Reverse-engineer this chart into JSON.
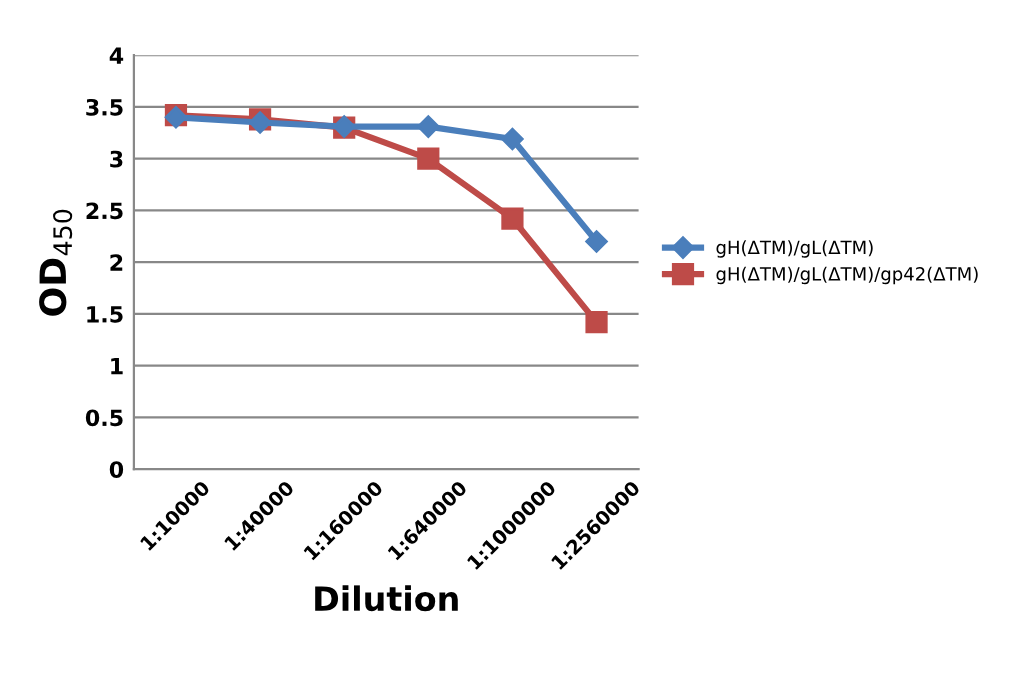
{
  "chart_data": {
    "type": "line",
    "xlabel": "Dilution",
    "ylabel": "OD$_{450}$",
    "categories": [
      "1:10000",
      "1:40000",
      "1:160000",
      "1:640000",
      "1:1000000",
      "1:2560000"
    ],
    "series": [
      {
        "name": "gH(ΔTM)/gL(ΔTM)",
        "color": "#4a7ebb",
        "marker": "diamond",
        "values": [
          3.4,
          3.35,
          3.31,
          3.31,
          3.19,
          2.2
        ]
      },
      {
        "name": "gH(ΔTM)/gL(ΔTM)/gp42(ΔTM)",
        "color": "#be4b48",
        "marker": "square",
        "values": [
          3.42,
          3.38,
          3.3,
          3.0,
          2.42,
          1.42
        ]
      }
    ],
    "ylim": [
      0,
      4
    ],
    "yticks": [
      0,
      0.5,
      1,
      1.5,
      2,
      2.5,
      3,
      3.5,
      4
    ],
    "grid": "y",
    "legend": "right",
    "line_style": "solid"
  }
}
